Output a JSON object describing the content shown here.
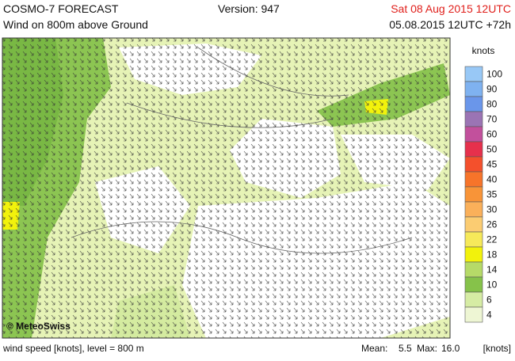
{
  "header": {
    "title": "COSMO-7 FORECAST",
    "subtitle": "Wind on 800m above Ground",
    "version": "Version: 947",
    "valid_time": "Sat 08 Aug 2015 12UTC",
    "run": "05.08.2015 12UTC +72h"
  },
  "map": {
    "copyright": "© MeteoSwiss"
  },
  "legend": {
    "unit": "knots",
    "items": [
      {
        "value": 100,
        "color": "#98c8f6"
      },
      {
        "value": 90,
        "color": "#7fb2f0"
      },
      {
        "value": 80,
        "color": "#6a96ea"
      },
      {
        "value": 70,
        "color": "#9b74b4"
      },
      {
        "value": 60,
        "color": "#c2509c"
      },
      {
        "value": 50,
        "color": "#e6304c"
      },
      {
        "value": 45,
        "color": "#f4502c"
      },
      {
        "value": 40,
        "color": "#f7742a"
      },
      {
        "value": 35,
        "color": "#f89438"
      },
      {
        "value": 30,
        "color": "#fab05a"
      },
      {
        "value": 26,
        "color": "#fbcc72"
      },
      {
        "value": 22,
        "color": "#f6e95a"
      },
      {
        "value": 18,
        "color": "#f2f20c"
      },
      {
        "value": 14,
        "color": "#b6da68"
      },
      {
        "value": 10,
        "color": "#86c24a"
      },
      {
        "value": 6,
        "color": "#d6eca4"
      },
      {
        "value": 4,
        "color": "#eef6d4"
      }
    ]
  },
  "footer": {
    "description": "wind speed [knots], level = 800 m",
    "mean_label": "Mean:",
    "mean": "5.5",
    "max_label": "Max:",
    "max": "16.0",
    "unit": "[knots]"
  }
}
